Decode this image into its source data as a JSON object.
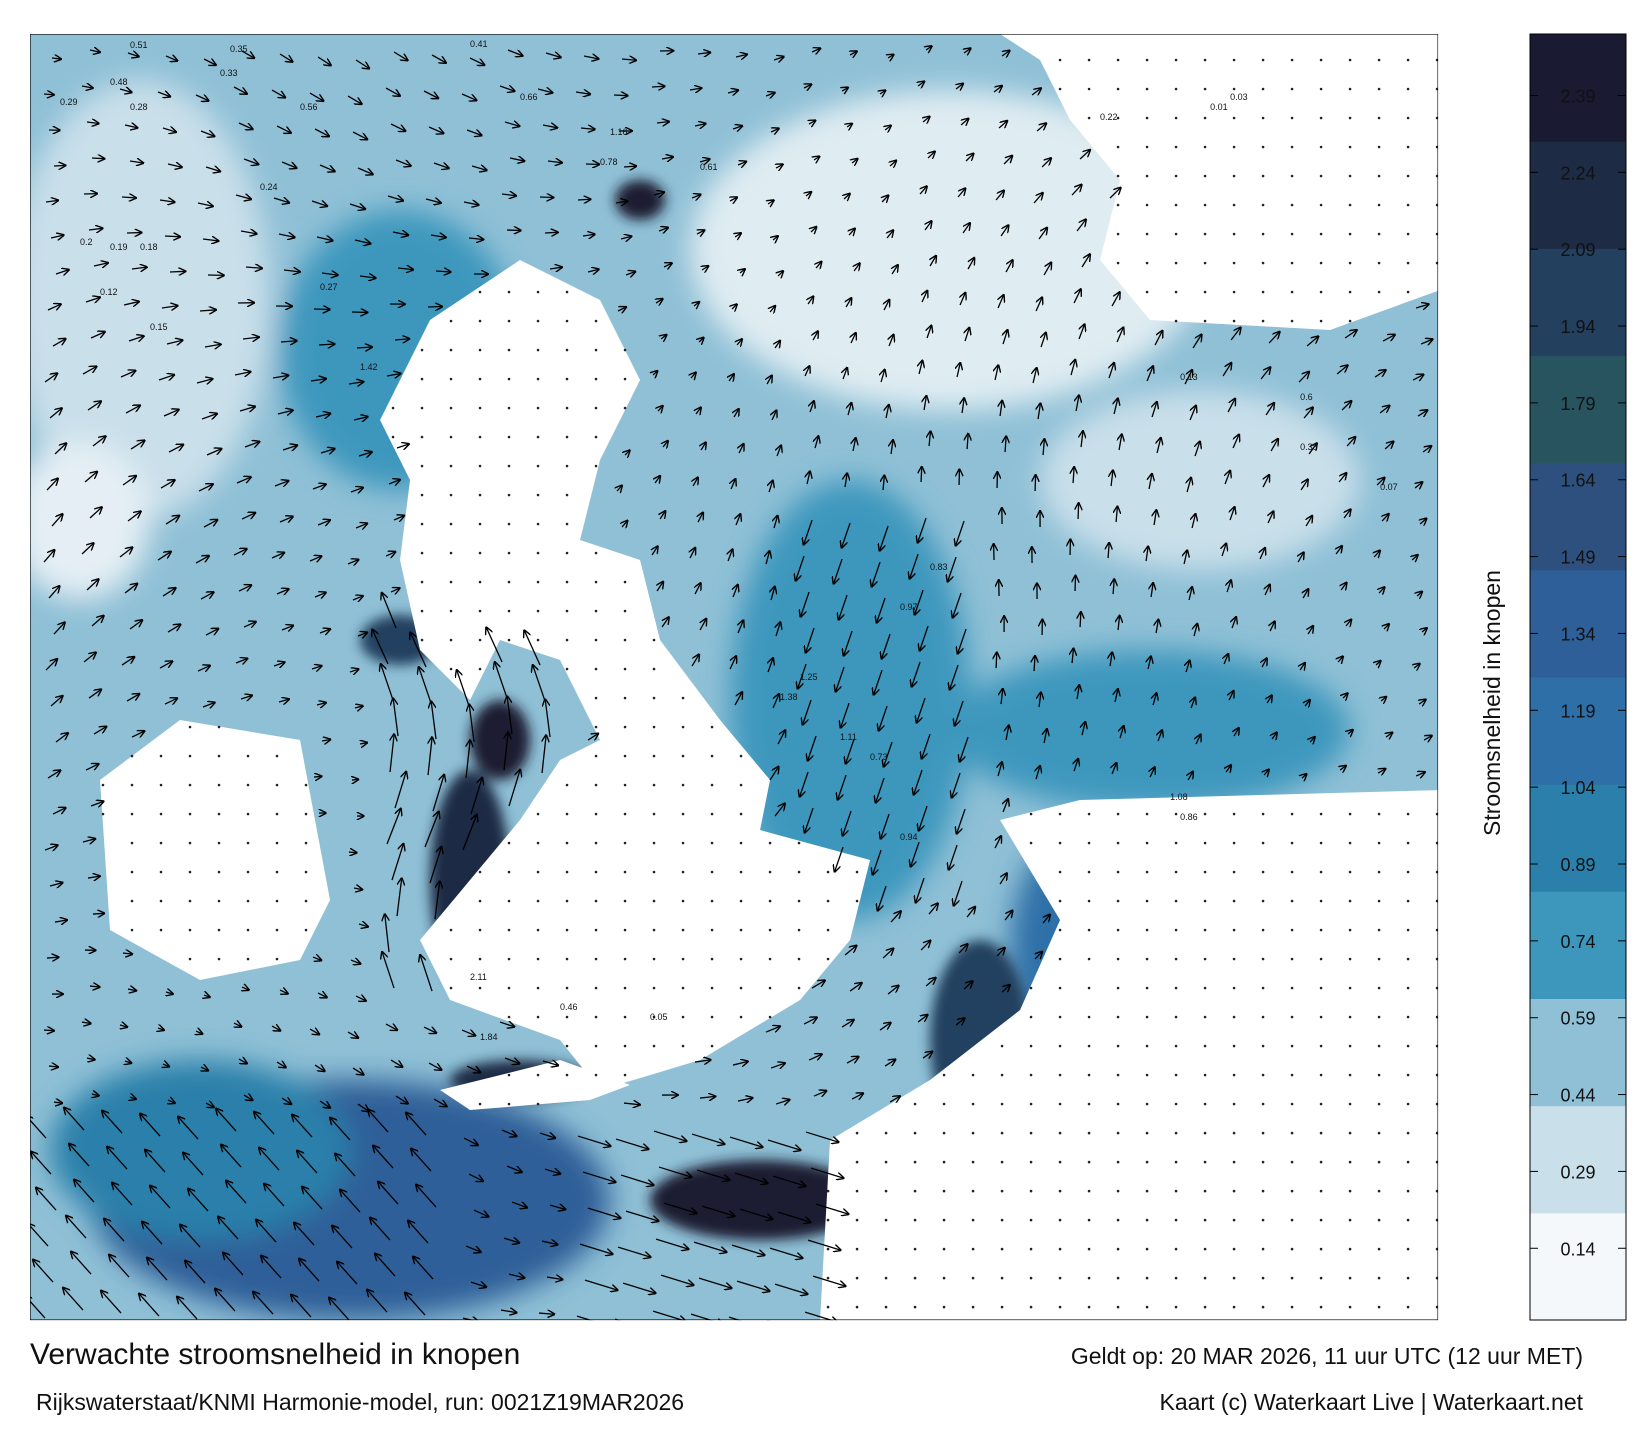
{
  "title": "Verwachte stroomsnelheid in knopen",
  "subtitle": "Rijkswaterstaat/KNMI Harmonie-model, run: 0021Z19MAR2026",
  "valid_time": "Geldt op: 20 MAR 2026, 11 uur UTC (12 uur MET)",
  "credit": "Kaart (c) Waterkaart Live | Waterkaart.net",
  "colorbar": {
    "label": "Stroomsnelheid in knopen",
    "range": [
      0,
      2.51
    ],
    "ticks": [
      0.14,
      0.29,
      0.44,
      0.59,
      0.74,
      0.89,
      1.04,
      1.19,
      1.34,
      1.49,
      1.64,
      1.79,
      1.94,
      2.09,
      2.24,
      2.39
    ],
    "colors": [
      "#f4f8fb",
      "#c9dfea",
      "#8fc0d6",
      "#3d97bd",
      "#2a80aa",
      "#2e6fa8",
      "#2f5f98",
      "#2e507f",
      "#285460",
      "#23405f",
      "#1d2b45",
      "#1a1a33"
    ]
  },
  "map_labels": [
    0.51,
    0.35,
    0.41,
    0.33,
    0.29,
    0.28,
    0.2,
    0.19,
    0.18,
    0.12,
    0.48,
    0.56,
    0.66,
    0.78,
    1.16,
    0.24,
    0.15,
    0.83,
    1.11,
    0.97,
    1.25,
    1.38,
    0.73,
    0.94,
    1.08,
    0.61,
    2.11,
    1.84,
    0.46,
    0.05,
    0.03,
    0.01,
    0.22,
    1.42,
    0.6,
    0.38,
    0.27,
    0.13,
    0.07,
    0.86
  ]
}
